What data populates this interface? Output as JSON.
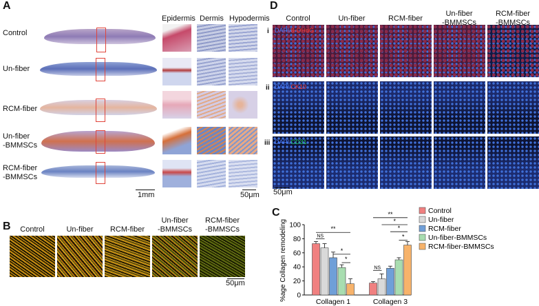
{
  "panels": {
    "A": "A",
    "B": "B",
    "C": "C",
    "D": "D"
  },
  "panelA": {
    "rows": [
      "Control",
      "Un-fiber",
      "RCM-fiber",
      "Un-fiber\n-BMMSCs",
      "RCM-fiber\n-BMMSCs"
    ],
    "columns": [
      "Epidermis",
      "Dermis",
      "Hypodermis"
    ],
    "scale_left": "1mm",
    "scale_right": "50μm"
  },
  "panelB": {
    "columns": [
      "Control",
      "Un-fiber",
      "RCM-fiber",
      "Un-fiber\n-BMMSCs",
      "RCM-fiber\n-BMMSCs"
    ],
    "scale": "50μm"
  },
  "panelD": {
    "columns": [
      "Control",
      "Un-fiber",
      "RCM-fiber",
      "Un-fiber\n-BMMSCs",
      "RCM-fiber\n-BMMSCs"
    ],
    "rows": [
      {
        "id": "i",
        "dapi": "DAPI/",
        "marker": "8-OHdG",
        "marker_color": "#ff3b30"
      },
      {
        "id": "ii",
        "dapi": "DAPI/",
        "marker": "CK10",
        "marker_color": "#ff3b30"
      },
      {
        "id": "iii",
        "dapi": "DAPI/",
        "marker": "CD31",
        "marker_color": "#22cc66"
      }
    ],
    "dapi_color": "#4a7bff",
    "scale": "50μm"
  },
  "chart_data": {
    "type": "bar",
    "categories": [
      "Collagen 1",
      "Collagen 3"
    ],
    "ylabel": "%age Collagen remodeling",
    "ylim": [
      0,
      100
    ],
    "yticks": [
      0,
      20,
      40,
      60,
      80,
      100
    ],
    "series": [
      {
        "name": "Control",
        "color": "#f08080",
        "values": [
          73,
          17
        ],
        "errors": [
          3,
          2
        ]
      },
      {
        "name": "Un-fiber",
        "color": "#d9d9d9",
        "values": [
          67,
          23
        ],
        "errors": [
          6,
          7
        ]
      },
      {
        "name": "RCM-fiber",
        "color": "#6f9fd8",
        "values": [
          53,
          38
        ],
        "errors": [
          8,
          3
        ]
      },
      {
        "name": "Un-fiber-BMMSCs",
        "color": "#a8ddb0",
        "values": [
          39,
          50
        ],
        "errors": [
          4,
          3
        ]
      },
      {
        "name": "RCM-fiber-BMMSCs",
        "color": "#f7b36b",
        "values": [
          16,
          71
        ],
        "errors": [
          7,
          5
        ]
      }
    ],
    "annotations": [
      "NS",
      "**",
      "*",
      "*",
      "NS",
      "**",
      "*",
      "*",
      "*"
    ]
  }
}
